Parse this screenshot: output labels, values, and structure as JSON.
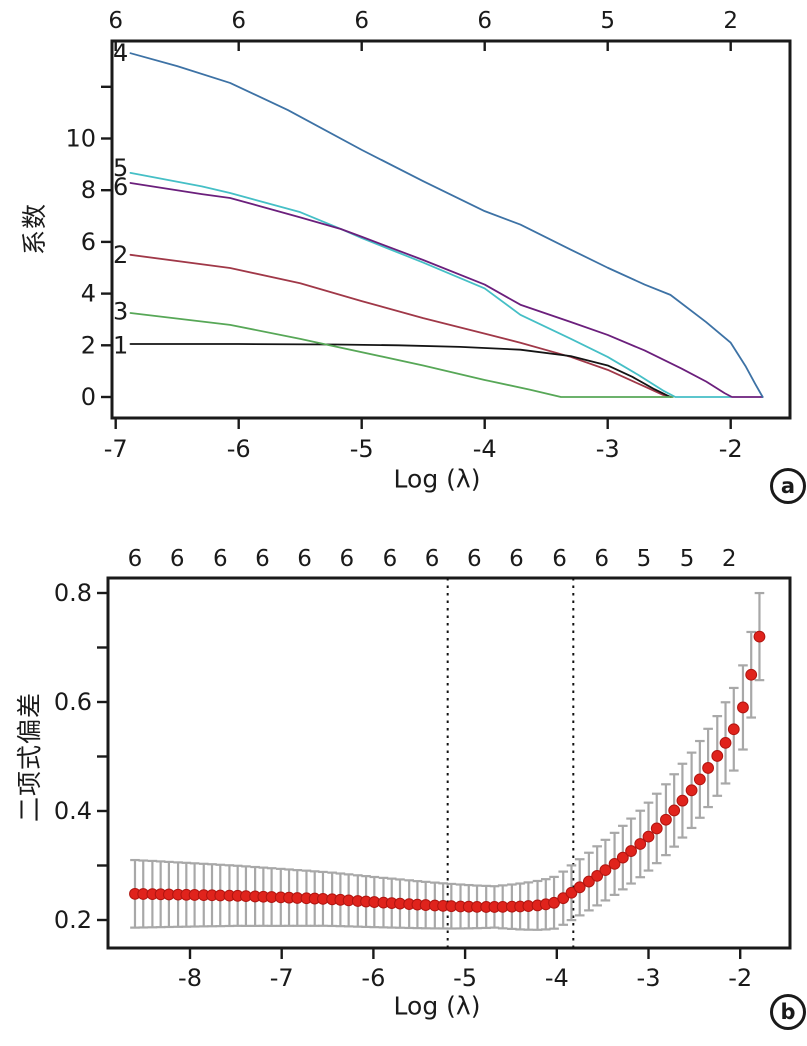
{
  "figure": {
    "bg": "#ffffff",
    "axis_color": "#1a1a1a",
    "text_color": "#1a1a1a"
  },
  "chart_data": [
    {
      "type": "line",
      "panel": "a",
      "tag": "a",
      "title": "",
      "xlabel": "Log (λ)",
      "ylabel": "系数",
      "xlim": [
        -7.03,
        -1.51
      ],
      "ylim": [
        -0.82,
        13.78
      ],
      "grid": false,
      "legend": "none",
      "x_ticks": [
        -7,
        -6,
        -5,
        -4,
        -3,
        -2
      ],
      "x_tick_labels": [
        "-7",
        "-6",
        "-5",
        "-4",
        "-3",
        "-2"
      ],
      "y_ticks": [
        0,
        2,
        4,
        6,
        8,
        10,
        12
      ],
      "y_tick_labels": [
        "0",
        "2",
        "4",
        "6",
        "8",
        "10",
        ""
      ],
      "top_axis_labels": [
        "6",
        "6",
        "6",
        "6",
        "5",
        "2"
      ],
      "top_axis_x": [
        -7,
        -6,
        -5,
        -4,
        -3,
        -2
      ],
      "series": [
        {
          "name": "2",
          "color": "#a03848",
          "label_y": 5.5,
          "x": [
            -6.88,
            -6.07,
            -5.5,
            -5.0,
            -4.5,
            -4.0,
            -3.71,
            -3.3,
            -3.0,
            -2.8,
            -2.65,
            -2.55,
            -2.48
          ],
          "y": [
            5.5,
            4.99,
            4.4,
            3.71,
            3.05,
            2.45,
            2.1,
            1.55,
            1.05,
            0.62,
            0.3,
            0.08,
            0
          ]
        },
        {
          "name": "1",
          "color": "#141414",
          "label_y": 2.0,
          "x": [
            -6.88,
            -6.0,
            -5.21,
            -4.7,
            -4.2,
            -3.71,
            -3.3,
            -3.0,
            -2.8,
            -2.62,
            -2.49
          ],
          "y": [
            2.05,
            2.05,
            2.03,
            2.0,
            1.94,
            1.83,
            1.58,
            1.22,
            0.78,
            0.3,
            0
          ]
        },
        {
          "name": "3",
          "color": "#57a757",
          "label_y": 3.3,
          "x": [
            -6.88,
            -6.07,
            -5.5,
            -5.21,
            -4.5,
            -4.0,
            -3.63,
            -3.38,
            -2.47
          ],
          "y": [
            3.25,
            2.79,
            2.25,
            1.95,
            1.22,
            0.66,
            0.28,
            0,
            0
          ]
        },
        {
          "name": "5",
          "color": "#45bfc6",
          "label_y": 8.85,
          "x": [
            -6.88,
            -6.3,
            -6.07,
            -5.5,
            -5.17,
            -5.0,
            -4.5,
            -4.0,
            -3.71,
            -3.3,
            -3.0,
            -2.75,
            -2.55,
            -2.45,
            -2.0
          ],
          "y": [
            8.67,
            8.15,
            7.89,
            7.15,
            6.5,
            6.15,
            5.2,
            4.2,
            3.18,
            2.25,
            1.55,
            0.85,
            0.25,
            0,
            0
          ]
        },
        {
          "name": "6",
          "color": "#6b1f7c",
          "label_y": 8.12,
          "x": [
            -6.88,
            -6.3,
            -6.07,
            -5.5,
            -5.17,
            -5.0,
            -4.5,
            -4.0,
            -3.71,
            -3.3,
            -3.0,
            -2.7,
            -2.4,
            -2.2,
            -2.05,
            -1.99,
            -1.74
          ],
          "y": [
            8.28,
            7.85,
            7.7,
            6.95,
            6.5,
            6.2,
            5.3,
            4.35,
            3.57,
            2.9,
            2.4,
            1.8,
            1.1,
            0.6,
            0.15,
            0,
            0
          ]
        },
        {
          "name": "4",
          "color": "#3d72a5",
          "label_y": 13.3,
          "x": [
            -6.88,
            -6.5,
            -6.07,
            -5.6,
            -5.0,
            -4.5,
            -4.0,
            -3.71,
            -3.3,
            -3.0,
            -2.7,
            -2.49,
            -2.2,
            -2.0,
            -1.88,
            -1.8,
            -1.74
          ],
          "y": [
            13.3,
            12.8,
            12.15,
            11.1,
            9.56,
            8.35,
            7.19,
            6.67,
            5.7,
            5.0,
            4.35,
            3.95,
            2.9,
            2.1,
            1.2,
            0.5,
            0
          ]
        }
      ]
    },
    {
      "type": "scatter",
      "panel": "b",
      "tag": "b",
      "title": "",
      "xlabel": "Log (λ)",
      "ylabel": "二项式偏差",
      "xlim": [
        -8.89,
        -1.46
      ],
      "ylim": [
        0.149,
        0.827
      ],
      "grid": false,
      "point_color": "#e0231c",
      "point_edge_color": "#b01510",
      "bar_color": "#a8a8a8",
      "vline_values": [
        -5.19,
        -3.82
      ],
      "x_ticks": [
        -8,
        -7,
        -6,
        -5,
        -4,
        -3,
        -2
      ],
      "x_tick_labels": [
        "-8",
        "-7",
        "-6",
        "-5",
        "-4",
        "-3",
        "-2"
      ],
      "y_ticks": [
        0.2,
        0.3,
        0.4,
        0.5,
        0.6,
        0.7,
        0.8
      ],
      "y_tick_labels": [
        "0.2",
        "",
        "0.4",
        "",
        "0.6",
        "",
        "0.8"
      ],
      "top_axis_labels": [
        "6",
        "6",
        "6",
        "6",
        "6",
        "6",
        "6",
        "6",
        "6",
        "6",
        "6",
        "6",
        "5",
        "5",
        "2"
      ],
      "top_axis_x": [
        -8.6,
        -8.14,
        -7.67,
        -7.21,
        -6.75,
        -6.29,
        -5.82,
        -5.36,
        -4.9,
        -4.44,
        -3.97,
        -3.51,
        -3.05,
        -2.58,
        -2.12
      ],
      "x": [
        -8.6,
        -8.51,
        -8.41,
        -8.32,
        -8.23,
        -8.13,
        -8.04,
        -7.95,
        -7.85,
        -7.76,
        -7.67,
        -7.57,
        -7.48,
        -7.39,
        -7.29,
        -7.2,
        -7.11,
        -7.01,
        -6.92,
        -6.83,
        -6.73,
        -6.64,
        -6.55,
        -6.45,
        -6.36,
        -6.27,
        -6.17,
        -6.08,
        -5.99,
        -5.89,
        -5.8,
        -5.71,
        -5.61,
        -5.52,
        -5.43,
        -5.33,
        -5.24,
        -5.15,
        -5.05,
        -4.96,
        -4.87,
        -4.77,
        -4.68,
        -4.59,
        -4.49,
        -4.4,
        -4.31,
        -4.21,
        -4.12,
        -4.03,
        -3.93,
        -3.84,
        -3.75,
        -3.65,
        -3.56,
        -3.47,
        -3.37,
        -3.28,
        -3.19,
        -3.09,
        -3.0,
        -2.91,
        -2.81,
        -2.72,
        -2.63,
        -2.53,
        -2.44,
        -2.35,
        -2.25,
        -2.16,
        -2.07,
        -1.97,
        -1.88,
        -1.79
      ],
      "deviance": [
        0.248,
        0.2477,
        0.2475,
        0.2472,
        0.2469,
        0.2466,
        0.2463,
        0.246,
        0.2457,
        0.2454,
        0.245,
        0.2447,
        0.2444,
        0.2438,
        0.2432,
        0.2427,
        0.2421,
        0.2415,
        0.241,
        0.2404,
        0.2399,
        0.2393,
        0.2388,
        0.238,
        0.237,
        0.236,
        0.2349,
        0.2339,
        0.2329,
        0.2319,
        0.231,
        0.2301,
        0.2291,
        0.2282,
        0.2274,
        0.2266,
        0.2259,
        0.2253,
        0.2248,
        0.2244,
        0.2241,
        0.224,
        0.224,
        0.2241,
        0.2244,
        0.2248,
        0.2256,
        0.2268,
        0.2288,
        0.2316,
        0.24,
        0.25,
        0.26,
        0.2705,
        0.281,
        0.2915,
        0.303,
        0.3145,
        0.3265,
        0.3395,
        0.353,
        0.368,
        0.384,
        0.401,
        0.419,
        0.438,
        0.458,
        0.479,
        0.501,
        0.525,
        0.55,
        0.59,
        0.65,
        0.72
      ],
      "half_width": [
        0.062,
        0.0614,
        0.0609,
        0.0603,
        0.0597,
        0.0591,
        0.0586,
        0.058,
        0.0574,
        0.0569,
        0.0563,
        0.0557,
        0.0551,
        0.0546,
        0.054,
        0.0534,
        0.0529,
        0.0523,
        0.0517,
        0.0511,
        0.0506,
        0.05,
        0.0494,
        0.0489,
        0.0483,
        0.0477,
        0.0471,
        0.0466,
        0.046,
        0.0454,
        0.0449,
        0.0443,
        0.0437,
        0.0431,
        0.0426,
        0.042,
        0.0414,
        0.0409,
        0.0403,
        0.0397,
        0.0391,
        0.0386,
        0.038,
        0.0394,
        0.0407,
        0.0421,
        0.0434,
        0.0448,
        0.0461,
        0.0475,
        0.0488,
        0.0502,
        0.0515,
        0.0529,
        0.0542,
        0.0556,
        0.0569,
        0.0583,
        0.0596,
        0.061,
        0.0623,
        0.0637,
        0.065,
        0.0664,
        0.0677,
        0.0691,
        0.0704,
        0.0718,
        0.0731,
        0.0745,
        0.0758,
        0.0772,
        0.0785,
        0.0799
      ]
    }
  ]
}
